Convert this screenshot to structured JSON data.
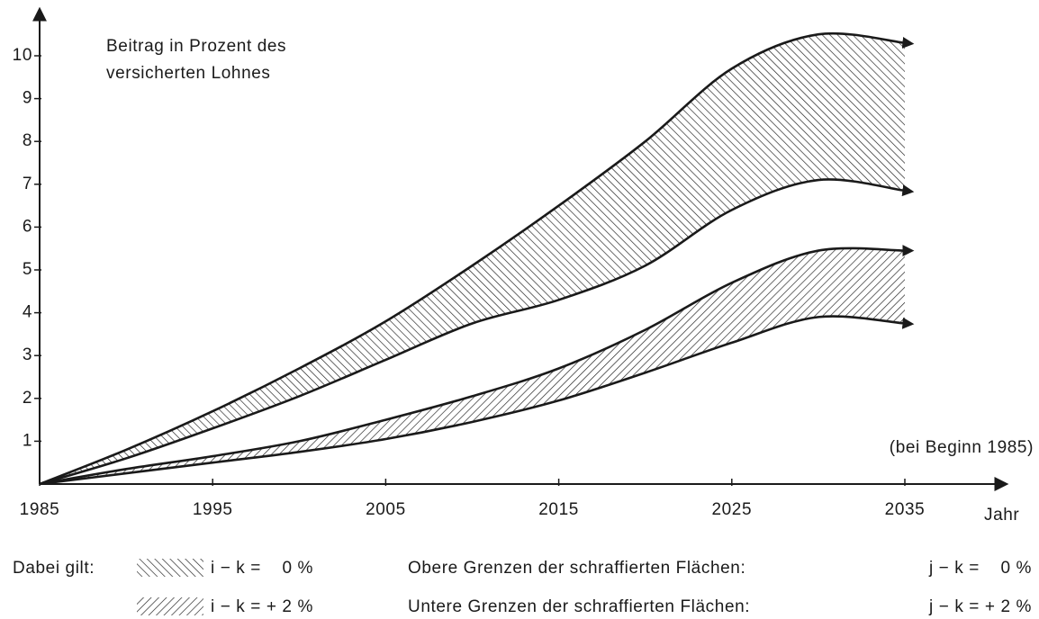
{
  "chart_data": {
    "type": "area_range",
    "annotation": [
      "Beitrag in Prozent des",
      "versicherten Lohnes"
    ],
    "note": "(bei Beginn 1985)",
    "x_label": "Jahr",
    "x": [
      1985,
      1990,
      1995,
      2000,
      2005,
      2010,
      2015,
      2020,
      2025,
      2030,
      2035
    ],
    "series": [
      {
        "name": "i − k =    0 %",
        "color": "#1a1a1a",
        "hatch": "backslash",
        "upper": [
          0,
          0.8,
          1.7,
          2.7,
          3.8,
          5.1,
          6.5,
          8.0,
          9.7,
          10.5,
          10.3
        ],
        "lower": [
          0,
          0.6,
          1.3,
          2.05,
          2.9,
          3.75,
          4.3,
          5.1,
          6.4,
          7.1,
          6.85
        ]
      },
      {
        "name": "i − k = + 2 %",
        "color": "#1a1a1a",
        "hatch": "slash",
        "upper": [
          0,
          0.35,
          0.65,
          1.0,
          1.5,
          2.05,
          2.7,
          3.6,
          4.7,
          5.45,
          5.45
        ],
        "lower": [
          0,
          0.25,
          0.5,
          0.75,
          1.05,
          1.45,
          1.95,
          2.6,
          3.3,
          3.9,
          3.75
        ]
      }
    ],
    "legend_title": "Dabei gilt:",
    "bound_notes": [
      {
        "label": "Obere Grenzen der schraffierten Flächen:",
        "value": "j − k =    0 %"
      },
      {
        "label": "Untere Grenzen der schraffierten Flächen:",
        "value": "j − k = + 2 %"
      }
    ],
    "xlim": [
      1985,
      2041
    ],
    "ylim": [
      0,
      11
    ],
    "xticks": [
      1985,
      1995,
      2005,
      2015,
      2025,
      2035
    ],
    "yticks": [
      1,
      2,
      3,
      4,
      5,
      6,
      7,
      8,
      9,
      10
    ]
  }
}
